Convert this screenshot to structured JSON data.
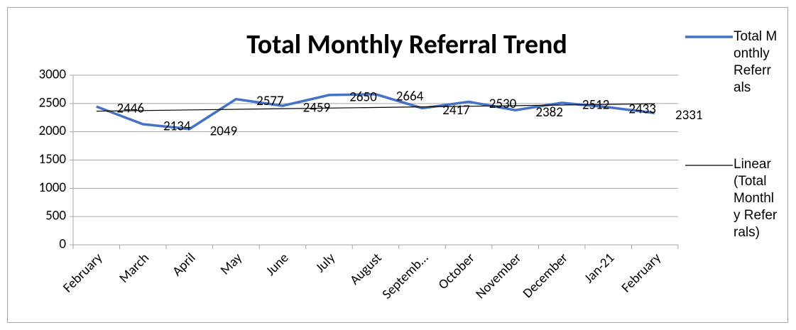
{
  "chart_data": {
    "type": "line",
    "title": "Total Monthly Referral Trend",
    "categories": [
      "February",
      "March",
      "April",
      "May",
      "June",
      "July",
      "August",
      "Septemb…",
      "October",
      "November",
      "December",
      "Jan-21",
      "February"
    ],
    "series": [
      {
        "name": "Total Monthly Referrals",
        "color": "#4472c4",
        "values": [
          2446,
          2134,
          2049,
          2577,
          2459,
          2650,
          2664,
          2417,
          2530,
          2382,
          2512,
          2433,
          2331
        ]
      }
    ],
    "trendline": {
      "name": "Linear (Total Monthly Referrals)",
      "kind": "linear",
      "color": "#000000"
    },
    "ylim": [
      0,
      3000
    ],
    "yticks": [
      0,
      500,
      1000,
      1500,
      2000,
      2500,
      3000
    ],
    "grid": true,
    "legend": "right"
  }
}
